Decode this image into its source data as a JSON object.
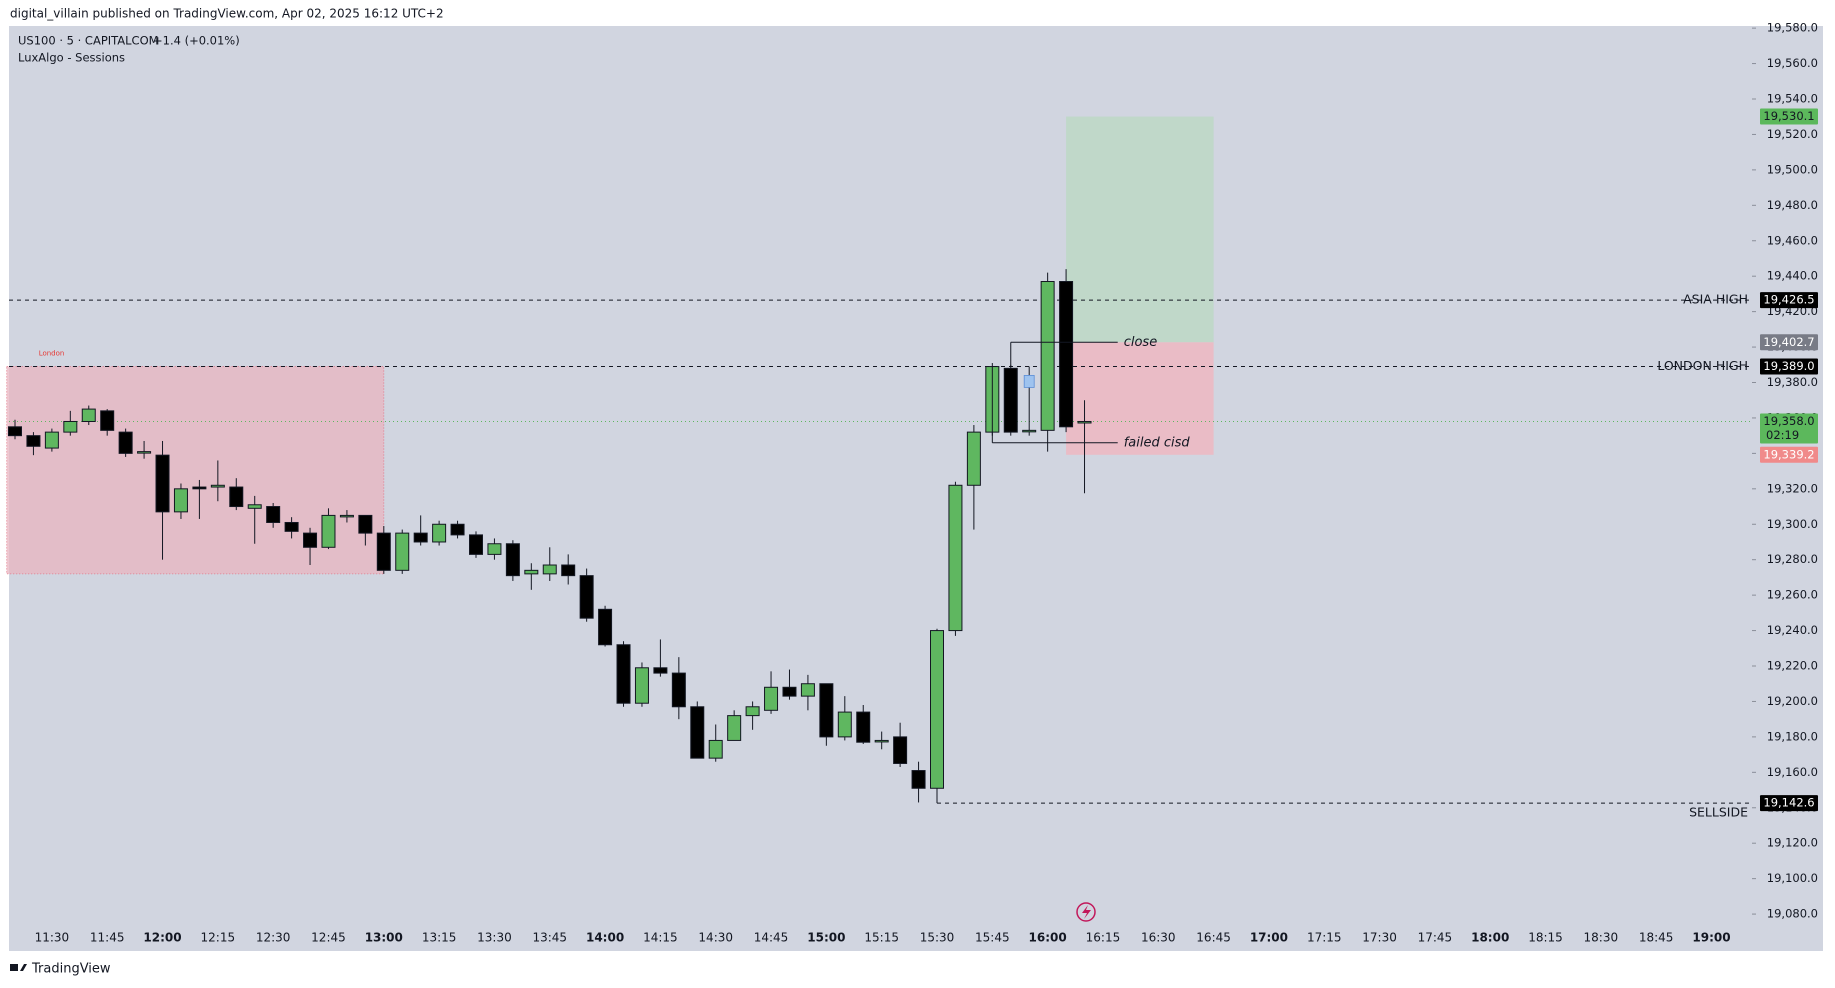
{
  "header": {
    "publisher": "digital_villain published on TradingView.com, Apr 02, 2025 16:12 UTC+2",
    "footer": "TradingView"
  },
  "chart_data": {
    "type": "candlestick",
    "symbol": "US100 · 5 · CAPITALCOM",
    "change": "+1.4 (+0.01%)",
    "indicator": "LuxAlgo - Sessions",
    "up_color": "#5fb760",
    "down_color": "#000000",
    "categories": [
      null,
      null,
      "11:30",
      null,
      null,
      "11:45",
      null,
      null,
      "12:00",
      null,
      null,
      "12:15",
      null,
      null,
      "12:30",
      null,
      null,
      "12:45",
      null,
      null,
      "13:00",
      null,
      null,
      "13:15",
      null,
      null,
      "13:30",
      null,
      null,
      "13:45",
      null,
      null,
      "14:00",
      null,
      null,
      "14:15",
      null,
      null,
      "14:30",
      null,
      null,
      "14:45",
      null,
      null,
      "15:00",
      null,
      null,
      "15:15",
      null,
      null,
      "15:30",
      null,
      null,
      "15:45",
      null,
      null,
      "16:00",
      null,
      null,
      "16:15",
      null,
      null,
      "16:30",
      null,
      null,
      "16:45",
      null,
      null,
      "17:00",
      null,
      null,
      "17:15",
      null,
      null,
      "17:30",
      null,
      null,
      "17:45",
      null,
      null,
      "18:00",
      null,
      null,
      "18:15",
      null,
      null,
      "18:30",
      null,
      null,
      "18:45",
      null,
      null,
      "19:00"
    ],
    "open": [
      19355,
      19350,
      19343,
      19352,
      19358,
      19364,
      19352,
      19341,
      19339,
      19307,
      19321,
      19321,
      19321,
      19309,
      19310,
      19301,
      19295,
      19287,
      19305,
      19305,
      19295,
      19274,
      19295,
      19290,
      19300,
      19294,
      19283,
      19289,
      19272,
      19272,
      19277,
      19271,
      19252,
      19232,
      19199,
      19219,
      19216,
      19197,
      19168,
      19178,
      19192,
      19195,
      19208,
      19203,
      19210,
      19180,
      19194,
      19178,
      19180,
      19161,
      19151,
      19240,
      19322,
      19352,
      19388,
      19353,
      19353,
      19437,
      19358,
      null,
      null,
      null,
      null,
      null,
      null,
      null,
      null,
      null,
      null,
      null,
      null,
      null,
      null,
      null,
      null,
      null,
      null,
      null,
      null,
      null,
      null,
      null,
      null,
      null,
      null,
      null,
      null,
      null,
      null,
      null,
      null,
      null,
      null
    ],
    "high": [
      19359,
      19352,
      19354,
      19364,
      19367,
      19365,
      19354,
      19347,
      19347,
      19323,
      19325,
      19336,
      19326,
      19316,
      19312,
      19304,
      19298,
      19309,
      19308,
      19305,
      19299,
      19297,
      19305,
      19302,
      19302,
      19296,
      19292,
      19291,
      19278,
      19287,
      19283,
      19275,
      19254,
      19234,
      19222,
      19235,
      19225,
      19200,
      19187,
      19195,
      19200,
      19217,
      19218,
      19215,
      19210,
      19203,
      19198,
      19183,
      19188,
      19166,
      19241,
      19324,
      19356,
      19391,
      19390,
      19389,
      19442,
      19444,
      19370,
      null,
      null,
      null,
      null,
      null,
      null,
      null,
      null,
      null,
      null,
      null,
      null,
      null,
      null,
      null,
      null,
      null,
      null,
      null,
      null,
      null,
      null,
      null,
      null,
      null,
      null,
      null,
      null,
      null,
      null,
      null,
      null,
      null,
      null
    ],
    "low": [
      19348,
      19339,
      19341,
      19350,
      19356,
      19350,
      19338,
      19337,
      19280,
      19303,
      19303,
      19313,
      19308,
      19289,
      19298,
      19292,
      19277,
      19286,
      19301,
      19288,
      19272,
      19272,
      19288,
      19288,
      19292,
      19281,
      19280,
      19268,
      19263,
      19268,
      19266,
      19245,
      19231,
      19197,
      19197,
      19214,
      19190,
      19168,
      19166,
      19178,
      19184,
      19193,
      19201,
      19195,
      19175,
      19178,
      19176,
      19173,
      19163,
      19143,
      19142.6,
      19237,
      19297,
      19350,
      19350,
      19350,
      19341,
      19352,
      19317.5,
      null,
      null,
      null,
      null,
      null,
      null,
      null,
      null,
      null,
      null,
      null,
      null,
      null,
      null,
      null,
      null,
      null,
      null,
      null,
      null,
      null,
      null,
      null,
      null,
      null,
      null,
      null,
      null,
      null,
      null,
      null,
      null,
      null,
      null
    ],
    "close": [
      19350,
      19344,
      19352,
      19358,
      19365,
      19353,
      19340,
      19341,
      19307,
      19320,
      19320,
      19322,
      19310,
      19311,
      19301,
      19296,
      19287,
      19305,
      19305,
      19295,
      19274,
      19295,
      19290,
      19300,
      19294,
      19283,
      19289,
      19271,
      19274,
      19277,
      19271,
      19247,
      19232,
      19199,
      19219,
      19216,
      19197,
      19168,
      19178,
      19192,
      19197,
      19208,
      19203,
      19210,
      19180,
      19194,
      19177,
      19178,
      19165,
      19151,
      19240,
      19322,
      19352,
      19389,
      19352,
      19353,
      19437,
      19355,
      19358,
      null,
      null,
      null,
      null,
      null,
      null,
      null,
      null,
      null,
      null,
      null,
      null,
      null,
      null,
      null,
      null,
      null,
      null,
      null,
      null,
      null,
      null,
      null,
      null,
      null,
      null,
      null,
      null,
      null,
      null,
      null,
      null,
      null,
      null
    ],
    "ylim": [
      19074.4,
      19581.2
    ],
    "yticks": [
      {
        "value": 19080,
        "label": "19,080.0"
      },
      {
        "value": 19100,
        "label": "19,100.0"
      },
      {
        "value": 19120,
        "label": "19,120.0"
      },
      {
        "value": 19140,
        "label": "19,140.0"
      },
      {
        "value": 19160,
        "label": "19,160.0"
      },
      {
        "value": 19180,
        "label": "19,180.0"
      },
      {
        "value": 19200,
        "label": "19,200.0"
      },
      {
        "value": 19220,
        "label": "19,220.0"
      },
      {
        "value": 19240,
        "label": "19,240.0"
      },
      {
        "value": 19260,
        "label": "19,260.0"
      },
      {
        "value": 19280,
        "label": "19,280.0"
      },
      {
        "value": 19300,
        "label": "19,300.0"
      },
      {
        "value": 19320,
        "label": "19,320.0"
      },
      {
        "value": 19340,
        "label": "19,340.0"
      },
      {
        "value": 19360,
        "label": "19,360.0"
      },
      {
        "value": 19380,
        "label": "19,380.0"
      },
      {
        "value": 19400,
        "label": "19,400.0"
      },
      {
        "value": 19420,
        "label": "19,420.0"
      },
      {
        "value": 19440,
        "label": "19,440.0"
      },
      {
        "value": 19460,
        "label": "19,460.0"
      },
      {
        "value": 19480,
        "label": "19,480.0"
      },
      {
        "value": 19500,
        "label": "19,500.0"
      },
      {
        "value": 19520,
        "label": "19,520.0"
      },
      {
        "value": 19540,
        "label": "19,540.0"
      },
      {
        "value": 19560,
        "label": "19,560.0"
      },
      {
        "value": 19580,
        "label": "19,580.0"
      }
    ],
    "levels": [
      {
        "label": "ASIA HIGH",
        "value": 19426.5
      },
      {
        "label": "LONDON HIGH",
        "value": 19389.0
      },
      {
        "label": "SELLSIDE",
        "value": 19142.6
      }
    ],
    "zones": [
      {
        "label": "London",
        "top": 19389.0,
        "bottom": 19272,
        "color": "#e8b4c0"
      },
      {
        "top": 19530.1,
        "bottom": 19402.7,
        "color": "#b9d8c2"
      },
      {
        "top": 19402.7,
        "bottom": 19339.2,
        "color": "#f2b3bd"
      }
    ],
    "annotations": [
      {
        "text": "close",
        "value": 19402.7
      },
      {
        "text": "failed cisd",
        "value": 19346
      }
    ],
    "price_labels": [
      {
        "value": 19530.1,
        "label": "19,530.1",
        "color": "#5cb85c",
        "text_color": "#131722"
      },
      {
        "value": 19426.5,
        "label": "19,426.5",
        "color": "#000000",
        "text_color": "#ffffff"
      },
      {
        "value": 19402.7,
        "label": "19,402.7",
        "color": "#787b86",
        "text_color": "#ffffff"
      },
      {
        "value": 19389.0,
        "label": "19,389.0",
        "color": "#000000",
        "text_color": "#ffffff"
      },
      {
        "value": 19358.0,
        "label": "19,358.0",
        "color": "#5cb85c",
        "text_color": "#131722",
        "countdown": "02:19"
      },
      {
        "value": 19339.2,
        "label": "19,339.2",
        "color": "#f08a8a",
        "text_color": "#ffffff"
      },
      {
        "value": 19142.6,
        "label": "19,142.6",
        "color": "#000000",
        "text_color": "#ffffff"
      }
    ]
  }
}
